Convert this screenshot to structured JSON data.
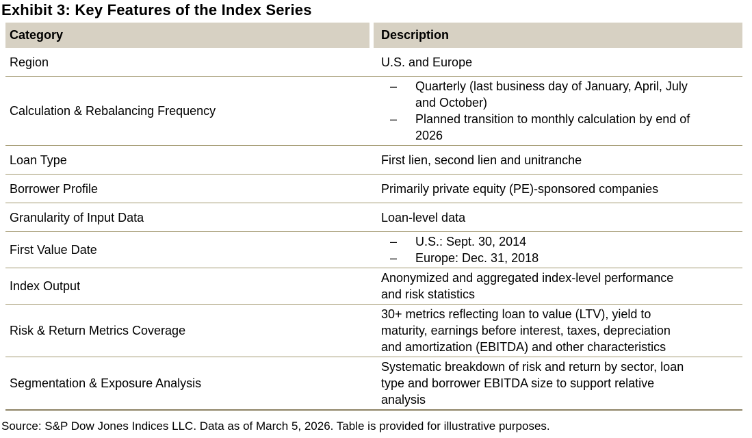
{
  "title": "Exhibit 3: Key Features of the Index Series",
  "bullet_glyph": "–",
  "colors": {
    "header_bg": "#d7d1c3",
    "row_divider": "#a1976e",
    "bottom_border": "#8d8264",
    "text": "#000000",
    "background": "#ffffff"
  },
  "table": {
    "columns": {
      "category": "Category",
      "description": "Description"
    },
    "rows": [
      {
        "category": "Region",
        "description": "U.S. and Europe"
      },
      {
        "category": "Calculation & Rebalancing Frequency",
        "bullets": [
          "Quarterly (last business day of January, April, July and October)",
          "Planned transition to monthly calculation by end of 2026"
        ]
      },
      {
        "category": "Loan Type",
        "description": "First lien, second lien and unitranche"
      },
      {
        "category": "Borrower Profile",
        "description": "Primarily private equity (PE)-sponsored companies"
      },
      {
        "category": "Granularity of Input Data",
        "description": "Loan-level data"
      },
      {
        "category": "First Value Date",
        "bullets": [
          "U.S.: Sept. 30, 2014",
          "Europe: Dec. 31, 2018"
        ]
      },
      {
        "category": "Index Output",
        "description": "Anonymized and aggregated index-level performance and risk statistics"
      },
      {
        "category": "Risk & Return Metrics Coverage",
        "description": "30+ metrics reflecting loan to value (LTV), yield to maturity, earnings before interest, taxes, depreciation and amortization (EBITDA) and other characteristics"
      },
      {
        "category": "Segmentation & Exposure Analysis",
        "description": "Systematic breakdown of risk and return by sector, loan type and borrower EBITDA size to support relative analysis"
      }
    ]
  },
  "footer": "Source: S&P Dow Jones Indices LLC. Data as of March 5, 2026. Table is provided for illustrative purposes."
}
